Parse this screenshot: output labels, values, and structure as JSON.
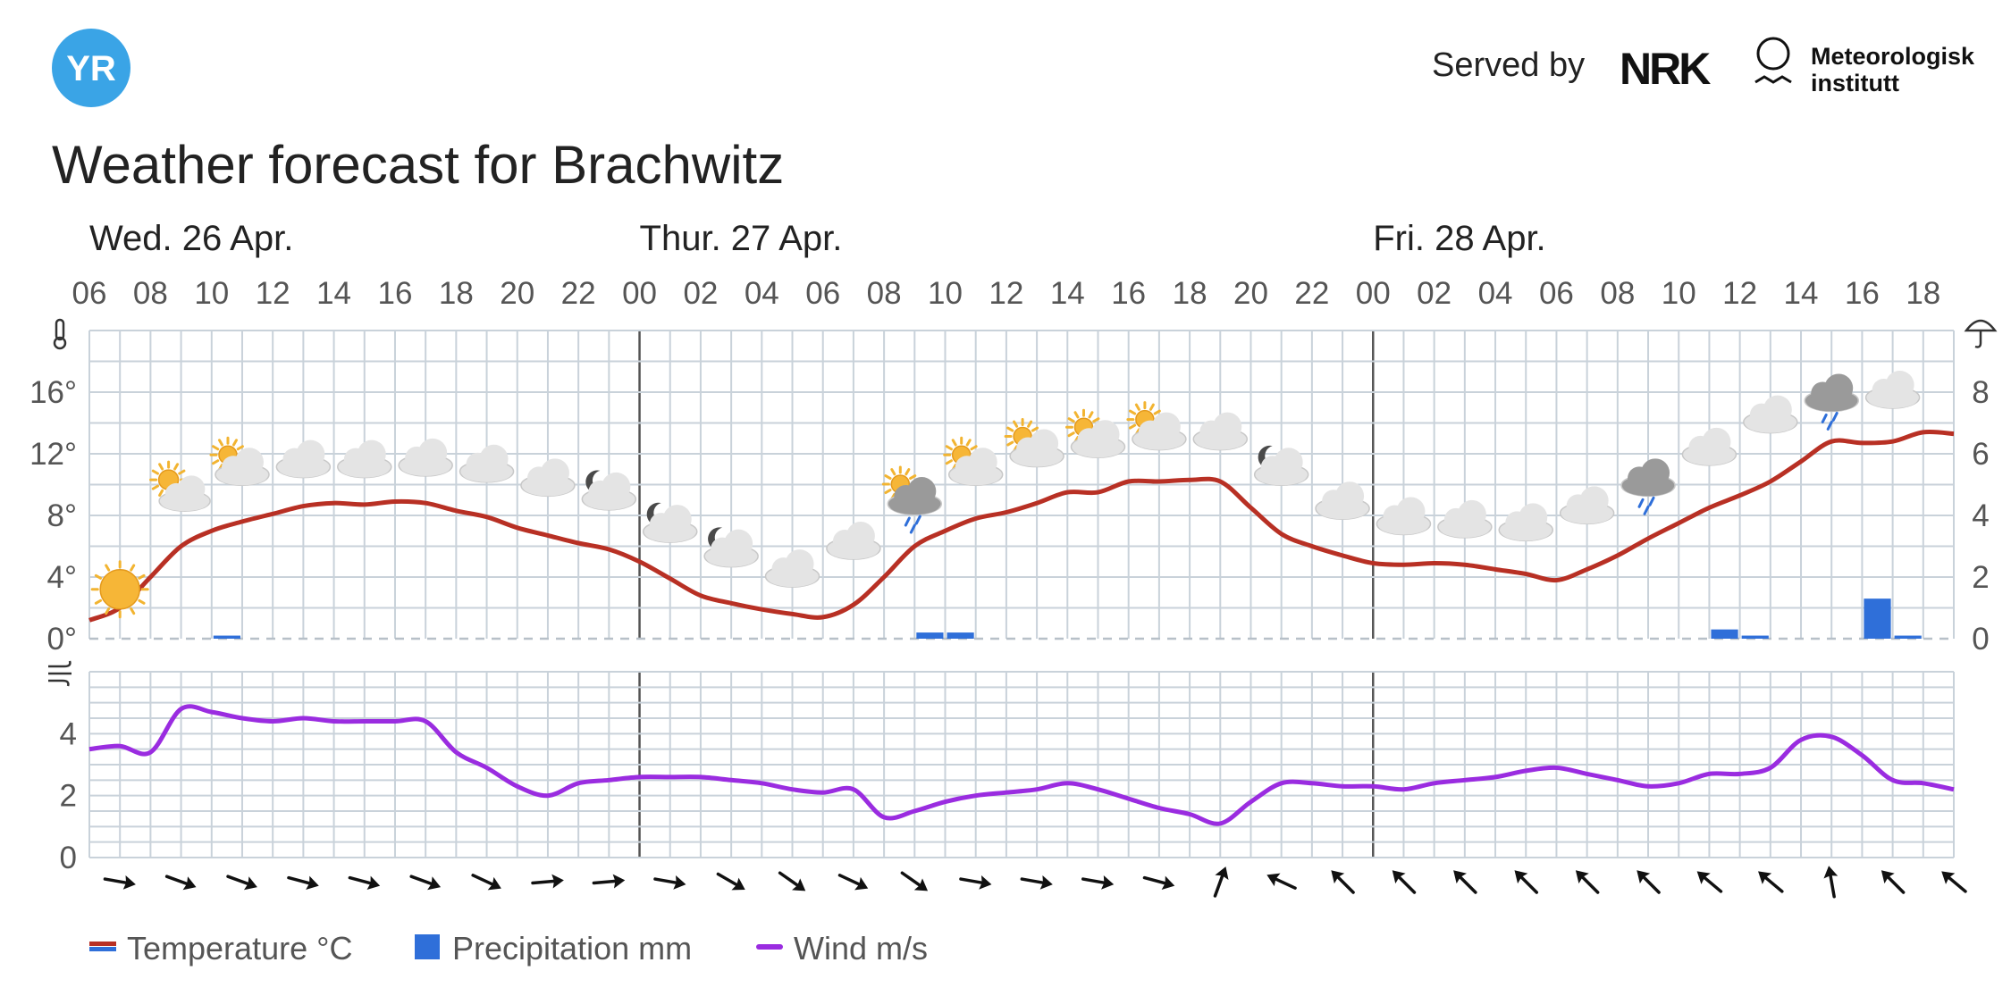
{
  "header": {
    "logo_text": "YR",
    "served_by": "Served by",
    "nrk_logo_text": "NRK",
    "met_line1": "Meteorologisk",
    "met_line2": "institutt"
  },
  "title": "Weather forecast for Brachwitz",
  "colors": {
    "temperature": "#b83024",
    "precipitation": "#2f6fd9",
    "wind": "#9a2ce0",
    "grid": "#c9d2da",
    "yr_blue": "#3aa4e6"
  },
  "chart_data": [
    {
      "type": "line",
      "title": "",
      "days": [
        {
          "label": "Wed. 26 Apr.",
          "start_hour": 6
        },
        {
          "label": "Thur. 27 Apr.",
          "start_hour": 24
        },
        {
          "label": "Fri. 28 Apr.",
          "start_hour": 48
        }
      ],
      "x_hour_range": [
        6,
        67
      ],
      "x_tick_labels": [
        "06",
        "08",
        "10",
        "12",
        "14",
        "16",
        "18",
        "20",
        "22",
        "00",
        "02",
        "04",
        "06",
        "08",
        "10",
        "12",
        "14",
        "16",
        "18",
        "20",
        "22",
        "00",
        "02",
        "04",
        "06",
        "08",
        "10",
        "12",
        "14",
        "16",
        "18"
      ],
      "y_left": {
        "unit": "°",
        "ylim": [
          0,
          20
        ],
        "ticks": [
          0,
          4,
          8,
          12,
          16
        ]
      },
      "y_right": {
        "ylim": [
          0,
          10
        ],
        "ticks": [
          0,
          2,
          4,
          6,
          8
        ]
      },
      "series": [
        {
          "name": "Temperature °C",
          "axis": "left",
          "x": [
            6,
            7,
            8,
            9,
            10,
            11,
            12,
            13,
            14,
            15,
            16,
            17,
            18,
            19,
            20,
            21,
            22,
            23,
            24,
            25,
            26,
            27,
            28,
            29,
            30,
            31,
            32,
            33,
            34,
            35,
            36,
            37,
            38,
            39,
            40,
            41,
            42,
            43,
            44,
            45,
            46,
            47,
            48,
            49,
            50,
            51,
            52,
            53,
            54,
            55,
            56,
            57,
            58,
            59,
            60,
            61,
            62,
            63,
            64,
            65,
            66,
            67
          ],
          "y": [
            1.2,
            2.0,
            4.0,
            6.0,
            7.0,
            7.6,
            8.1,
            8.6,
            8.8,
            8.7,
            8.9,
            8.8,
            8.3,
            7.9,
            7.2,
            6.7,
            6.2,
            5.8,
            5.0,
            3.9,
            2.8,
            2.3,
            1.9,
            1.6,
            1.4,
            2.2,
            4.0,
            6.0,
            7.0,
            7.8,
            8.2,
            8.8,
            9.5,
            9.5,
            10.2,
            10.2,
            10.3,
            10.2,
            8.5,
            6.8,
            6.0,
            5.4,
            4.9,
            4.8,
            4.9,
            4.8,
            4.5,
            4.2,
            3.8,
            4.5,
            5.4,
            6.5,
            7.5,
            8.5,
            9.3,
            10.2,
            11.5,
            12.8,
            12.7,
            12.8,
            13.4,
            13.3
          ]
        },
        {
          "name": "Precipitation mm",
          "type": "bar",
          "axis": "right",
          "x": [
            10,
            33,
            34,
            59,
            60,
            64,
            65
          ],
          "values": [
            0.1,
            0.2,
            0.2,
            0.3,
            0.1,
            1.3,
            0.1
          ]
        }
      ],
      "weather_icons": [
        {
          "hour": 7,
          "icon": "clear-sky-icon",
          "temp": 3.2
        },
        {
          "hour": 9,
          "icon": "fair-day-icon",
          "temp": 9.5
        },
        {
          "hour": 11,
          "icon": "partly-cloudy-day-icon",
          "temp": 11.0
        },
        {
          "hour": 13,
          "icon": "cloudy-icon",
          "temp": 11.5
        },
        {
          "hour": 15,
          "icon": "cloudy-icon",
          "temp": 11.5
        },
        {
          "hour": 17,
          "icon": "cloudy-icon",
          "temp": 11.6
        },
        {
          "hour": 19,
          "icon": "cloudy-icon",
          "temp": 11.2
        },
        {
          "hour": 21,
          "icon": "cloudy-icon",
          "temp": 10.3
        },
        {
          "hour": 23,
          "icon": "partly-cloudy-night-icon",
          "temp": 9.4
        },
        {
          "hour": 25,
          "icon": "partly-cloudy-night-icon",
          "temp": 7.3
        },
        {
          "hour": 27,
          "icon": "partly-cloudy-night-icon",
          "temp": 5.7
        },
        {
          "hour": 29,
          "icon": "cloudy-icon",
          "temp": 4.4
        },
        {
          "hour": 31,
          "icon": "cloudy-icon",
          "temp": 6.2
        },
        {
          "hour": 33,
          "icon": "light-rain-showers-day-icon",
          "temp": 9.1
        },
        {
          "hour": 35,
          "icon": "partly-cloudy-day-icon",
          "temp": 11.0
        },
        {
          "hour": 37,
          "icon": "partly-cloudy-day-icon",
          "temp": 12.2
        },
        {
          "hour": 39,
          "icon": "partly-cloudy-day-icon",
          "temp": 12.8
        },
        {
          "hour": 41,
          "icon": "partly-cloudy-day-icon",
          "temp": 13.3
        },
        {
          "hour": 43,
          "icon": "cloudy-icon",
          "temp": 13.3
        },
        {
          "hour": 45,
          "icon": "partly-cloudy-night-icon",
          "temp": 11.0
        },
        {
          "hour": 47,
          "icon": "cloudy-icon",
          "temp": 8.8
        },
        {
          "hour": 49,
          "icon": "cloudy-icon",
          "temp": 7.8
        },
        {
          "hour": 51,
          "icon": "cloudy-icon",
          "temp": 7.6
        },
        {
          "hour": 53,
          "icon": "cloudy-icon",
          "temp": 7.4
        },
        {
          "hour": 55,
          "icon": "cloudy-icon",
          "temp": 8.5
        },
        {
          "hour": 57,
          "icon": "light-rain-icon",
          "temp": 10.3
        },
        {
          "hour": 59,
          "icon": "cloudy-icon",
          "temp": 12.3
        },
        {
          "hour": 61,
          "icon": "cloudy-icon",
          "temp": 14.4
        },
        {
          "hour": 63,
          "icon": "light-rain-icon",
          "temp": 15.8
        },
        {
          "hour": 65,
          "icon": "cloudy-icon",
          "temp": 16.0
        }
      ]
    },
    {
      "type": "line",
      "title": "",
      "x_hour_range": [
        6,
        67
      ],
      "y_left": {
        "ylim": [
          0,
          6
        ],
        "ticks": [
          0,
          2,
          4
        ]
      },
      "series": [
        {
          "name": "Wind m/s",
          "x": [
            6,
            7,
            8,
            9,
            10,
            11,
            12,
            13,
            14,
            15,
            16,
            17,
            18,
            19,
            20,
            21,
            22,
            23,
            24,
            25,
            26,
            27,
            28,
            29,
            30,
            31,
            32,
            33,
            34,
            35,
            36,
            37,
            38,
            39,
            40,
            41,
            42,
            43,
            44,
            45,
            46,
            47,
            48,
            49,
            50,
            51,
            52,
            53,
            54,
            55,
            56,
            57,
            58,
            59,
            60,
            61,
            62,
            63,
            64,
            65,
            66,
            67
          ],
          "y": [
            3.5,
            3.6,
            3.4,
            4.8,
            4.7,
            4.5,
            4.4,
            4.5,
            4.4,
            4.4,
            4.4,
            4.4,
            3.4,
            2.9,
            2.3,
            2.0,
            2.4,
            2.5,
            2.6,
            2.6,
            2.6,
            2.5,
            2.4,
            2.2,
            2.1,
            2.2,
            1.3,
            1.5,
            1.8,
            2.0,
            2.1,
            2.2,
            2.4,
            2.2,
            1.9,
            1.6,
            1.4,
            1.1,
            1.8,
            2.4,
            2.4,
            2.3,
            2.3,
            2.2,
            2.4,
            2.5,
            2.6,
            2.8,
            2.9,
            2.7,
            2.5,
            2.3,
            2.4,
            2.7,
            2.7,
            2.9,
            3.8,
            3.9,
            3.3,
            2.5,
            2.4,
            2.2
          ]
        }
      ],
      "wind_direction_rotation_deg": [
        10,
        20,
        20,
        15,
        15,
        20,
        25,
        -5,
        -5,
        10,
        30,
        35,
        25,
        35,
        10,
        10,
        10,
        15,
        -70,
        -155,
        -135,
        -135,
        -135,
        -135,
        -135,
        -135,
        -140,
        -140,
        -100,
        -135,
        -140
      ]
    }
  ],
  "legend": [
    {
      "label": "Temperature °C",
      "key": "temperature"
    },
    {
      "label": "Precipitation mm",
      "key": "precipitation"
    },
    {
      "label": "Wind m/s",
      "key": "wind"
    }
  ]
}
